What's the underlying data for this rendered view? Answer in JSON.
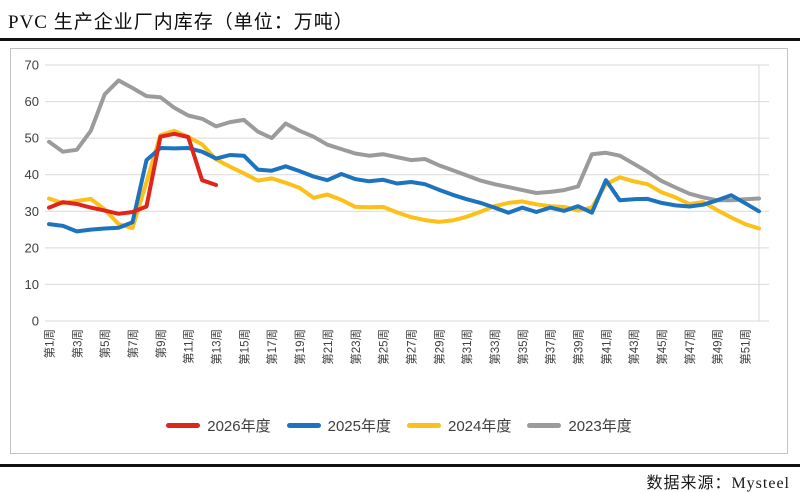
{
  "title": "PVC 生产企业厂内库存（单位：万吨）",
  "source": "数据来源：Mysteel",
  "colors": {
    "red_2026": "#e0251b",
    "blue_2025": "#1e73be",
    "yellow_2024": "#fcc018",
    "gray_2023": "#9b9b9b",
    "grid": "#d9d9d9",
    "axis_text": "#404040",
    "divider": "#111111"
  },
  "chart_data": {
    "type": "line",
    "title": "PVC 生产企业厂内库存（单位：万吨）",
    "xlabel": "",
    "ylabel": "",
    "ylim": [
      0,
      70
    ],
    "y_ticks": [
      0,
      10,
      20,
      30,
      40,
      50,
      60,
      70
    ],
    "grid": true,
    "legend_position": "bottom",
    "x_unit": "week",
    "x_weeks_total": 52,
    "x_tick_labels": [
      "第1周",
      "第3周",
      "第5周",
      "第7周",
      "第9周",
      "第11周",
      "第13周",
      "第15周",
      "第17周",
      "第19周",
      "第21周",
      "第23周",
      "第25周",
      "第27周",
      "第29周",
      "第31周",
      "第33周",
      "第35周",
      "第37周",
      "第39周",
      "第41周",
      "第43周",
      "第45周",
      "第47周",
      "第49周",
      "第51周"
    ],
    "series": [
      {
        "name": "2026年度",
        "color": "#e0251b",
        "start_week": 1,
        "values": [
          31,
          32.5,
          32,
          31,
          30.2,
          29.3,
          29.8,
          31.3,
          50.4,
          51.2,
          50.3,
          38.5,
          37.2
        ]
      },
      {
        "name": "2025年度",
        "color": "#1e73be",
        "start_week": 1,
        "values": [
          26.5,
          26,
          24.5,
          25,
          25.3,
          25.5,
          27,
          44,
          47.3,
          47.2,
          47.3,
          46.3,
          44.4,
          45.4,
          45.2,
          41.4,
          41.1,
          42.3,
          41,
          39.5,
          38.5,
          40.2,
          38.8,
          38.2,
          38.6,
          37.6,
          38,
          37.4,
          35.9,
          34.5,
          33.3,
          32.3,
          31,
          29.6,
          31,
          29.8,
          31,
          30.1,
          31.4,
          29.6,
          38.5,
          33,
          33.3,
          33.4,
          32.3,
          31.6,
          31.3,
          31.8,
          33,
          34.4,
          32.2,
          30
        ]
      },
      {
        "name": "2024年度",
        "color": "#fcc018",
        "start_week": 1,
        "values": [
          33.5,
          32.2,
          32.8,
          33.4,
          30.5,
          26.5,
          25.4,
          38,
          50.8,
          52,
          50.3,
          48.3,
          44.2,
          42.2,
          40.4,
          38.4,
          39,
          37.8,
          36.4,
          33.7,
          34.6,
          33.1,
          31.2,
          31.1,
          31.2,
          29.7,
          28.4,
          27.6,
          27.1,
          27.5,
          28.5,
          29.9,
          31.4,
          32.3,
          32.7,
          31.9,
          31.4,
          31.2,
          30.2,
          31,
          37.4,
          39.3,
          38.2,
          37.4,
          35.2,
          33.8,
          32,
          32.5,
          30.3,
          28.3,
          26.5,
          25.3
        ]
      },
      {
        "name": "2023年度",
        "color": "#9b9b9b",
        "start_week": 1,
        "values": [
          49,
          46.3,
          46.8,
          52,
          62,
          65.8,
          63.7,
          61.5,
          61.2,
          58.3,
          56.2,
          55.3,
          53.2,
          54.4,
          55,
          51.8,
          50,
          54,
          52,
          50.4,
          48.2,
          47,
          45.8,
          45.2,
          45.6,
          44.8,
          44,
          44.3,
          42.6,
          41.2,
          39.8,
          38.4,
          37.4,
          36.6,
          35.8,
          35,
          35.3,
          35.8,
          36.8,
          45.6,
          46,
          45.2,
          43,
          40.8,
          38.3,
          36.5,
          34.8,
          33.8,
          33,
          33,
          33.3,
          33.5
        ]
      }
    ]
  }
}
